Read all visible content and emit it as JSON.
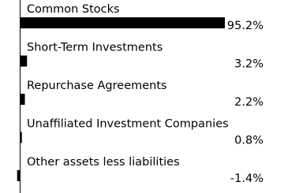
{
  "chart_data": {
    "type": "bar",
    "orientation": "horizontal",
    "categories": [
      "Common Stocks",
      "Short-Term Investments",
      "Repurchase Agreements",
      "Unaffiliated Investment Companies",
      "Other assets less liabilities"
    ],
    "values": [
      95.2,
      3.2,
      2.2,
      0.8,
      -1.4
    ],
    "value_labels": [
      "95.2%",
      "3.2%",
      "2.2%",
      "0.8%",
      "-1.4%"
    ],
    "color": "#000000",
    "xlim": [
      -9,
      95.2
    ]
  }
}
